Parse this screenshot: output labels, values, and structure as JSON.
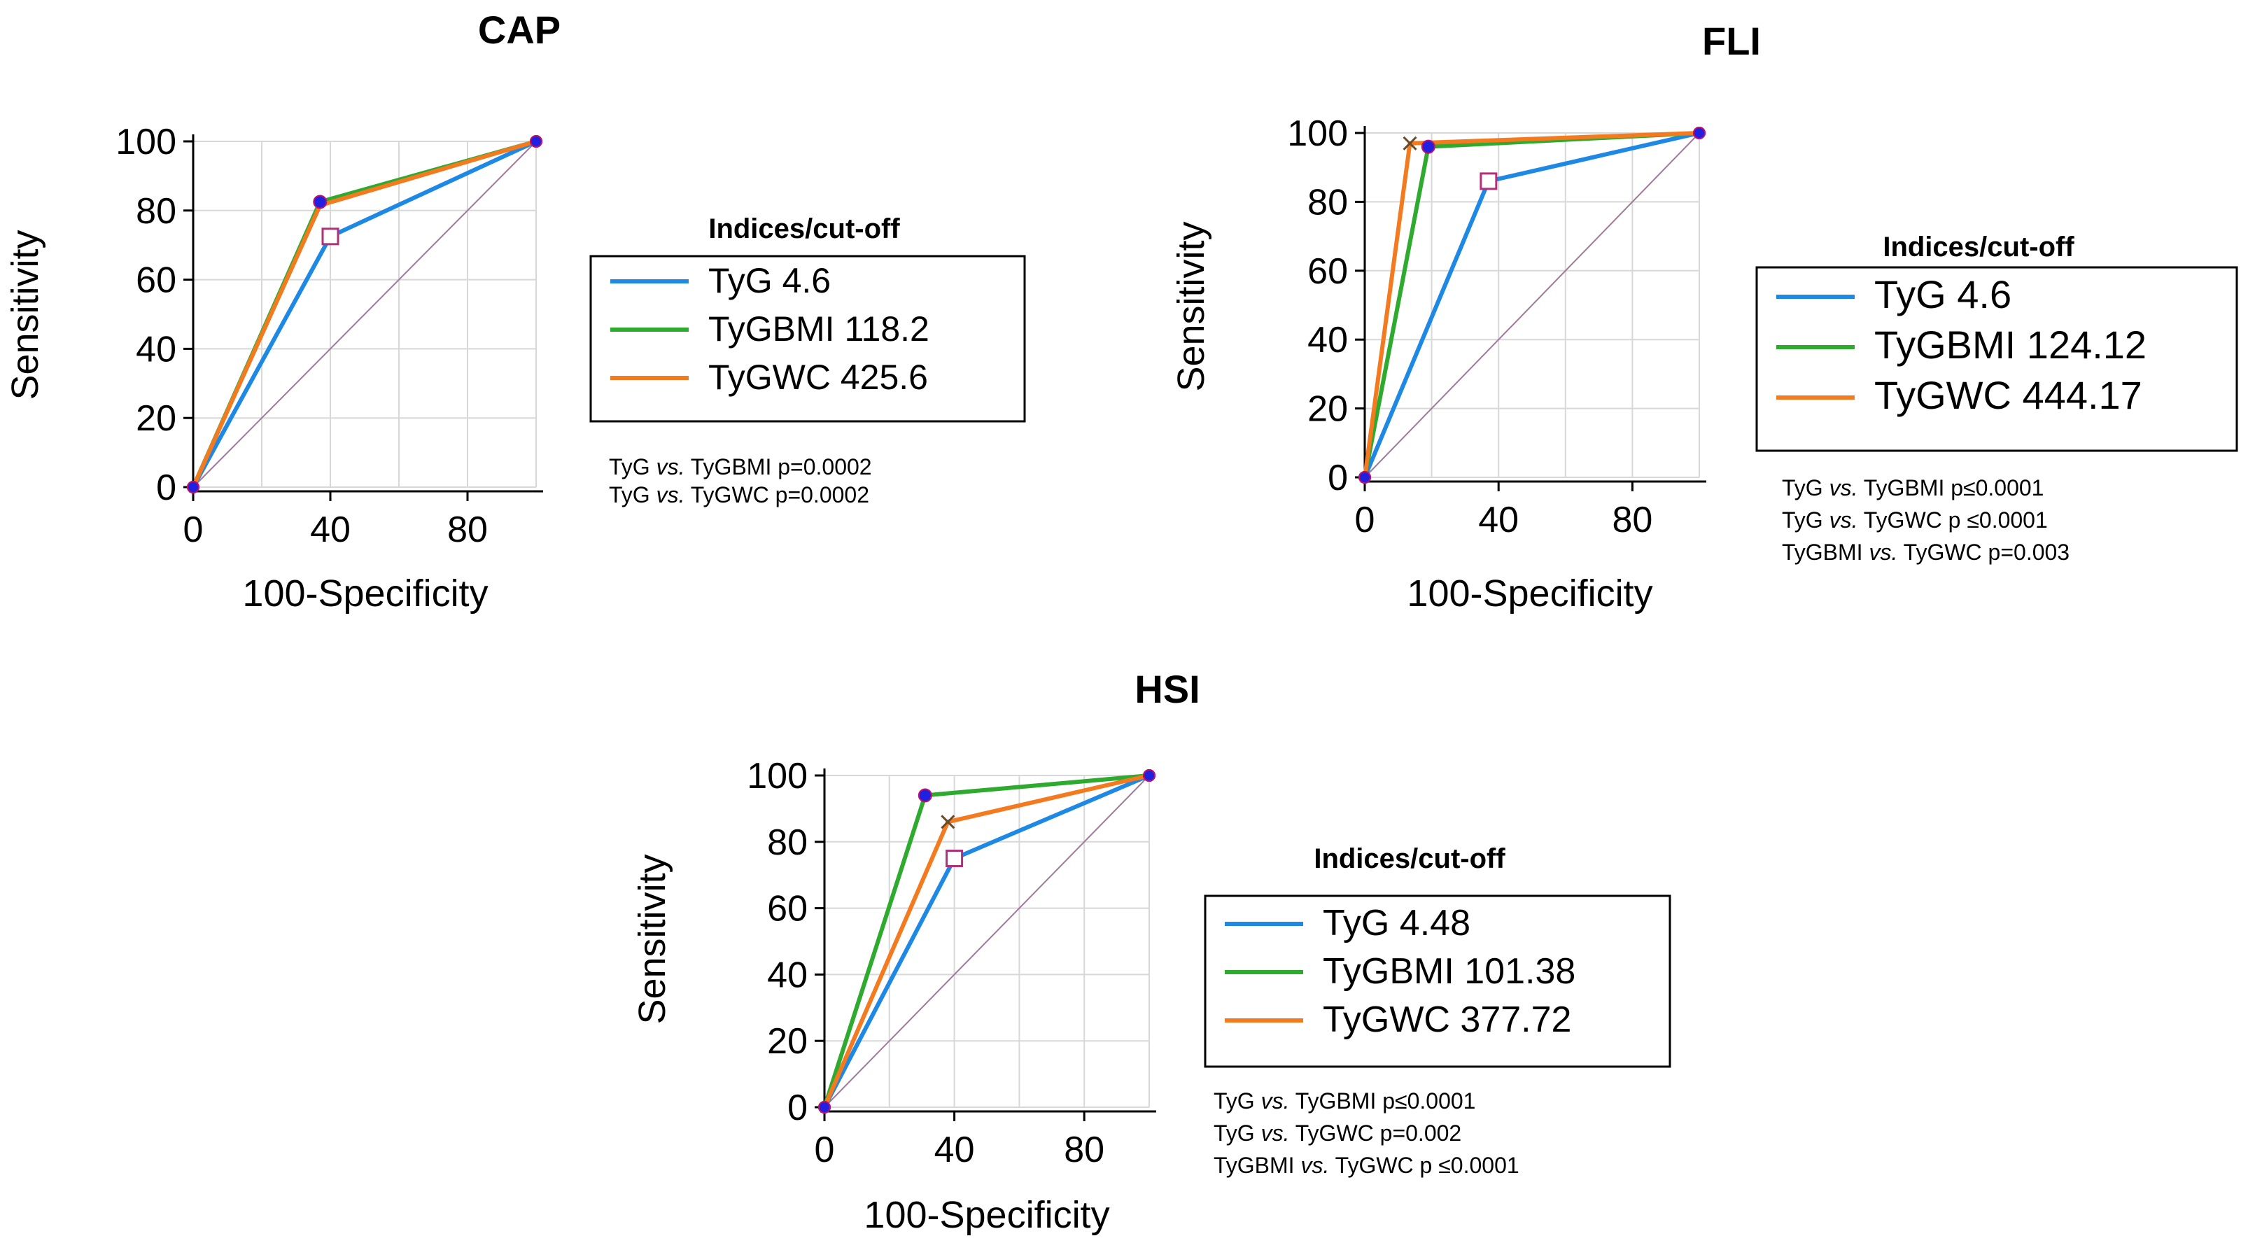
{
  "chart_data": [
    {
      "type": "line",
      "title": "CAP",
      "xlabel": "100-Specificity",
      "ylabel": "Sensitivity",
      "xlim": [
        0,
        100
      ],
      "ylim": [
        0,
        100
      ],
      "xticks": [
        "0",
        "40",
        "80"
      ],
      "yticks": [
        "0",
        "20",
        "40",
        "60",
        "80",
        "100"
      ],
      "legend_title": "Indices/cut-off",
      "series": [
        {
          "name": "TyG 4.6",
          "color": "#1e88e5",
          "points": [
            [
              0,
              0
            ],
            [
              40,
              72.5
            ],
            [
              100,
              100
            ]
          ],
          "marker": "square"
        },
        {
          "name": "TyGBMI 118.2",
          "color": "#2eaa2e",
          "points": [
            [
              0,
              0
            ],
            [
              37,
              82.5
            ],
            [
              100,
              100
            ]
          ],
          "marker": "dot"
        },
        {
          "name": "TyGWC 425.6",
          "color": "#f47a20",
          "points": [
            [
              0,
              0
            ],
            [
              37,
              81.5
            ],
            [
              100,
              100
            ]
          ],
          "marker": "none"
        }
      ],
      "comparisons": [
        {
          "a": "TyG",
          "vs": "vs.",
          "b": "TyGBMI p=0.0002"
        },
        {
          "a": "TyG",
          "vs": "vs.",
          "b": "TyGWC p=0.0002"
        }
      ]
    },
    {
      "type": "line",
      "title": "FLI",
      "xlabel": "100-Specificity",
      "ylabel": "Sensitivity",
      "xlim": [
        0,
        100
      ],
      "ylim": [
        0,
        100
      ],
      "xticks": [
        "0",
        "40",
        "80"
      ],
      "yticks": [
        "0",
        "20",
        "40",
        "60",
        "80",
        "100"
      ],
      "legend_title": "Indices/cut-off",
      "series": [
        {
          "name": "TyG 4.6",
          "color": "#1e88e5",
          "points": [
            [
              0,
              0
            ],
            [
              37,
              86
            ],
            [
              100,
              100
            ]
          ],
          "marker": "square"
        },
        {
          "name": "TyGBMI 124.12",
          "color": "#2eaa2e",
          "points": [
            [
              0,
              0
            ],
            [
              19,
              96
            ],
            [
              100,
              100
            ]
          ],
          "marker": "dot"
        },
        {
          "name": "TyGWC 444.17",
          "color": "#f47a20",
          "points": [
            [
              0,
              0
            ],
            [
              13.5,
              97
            ],
            [
              100,
              100
            ]
          ],
          "marker": "cross"
        }
      ],
      "comparisons": [
        {
          "a": "TyG",
          "vs": "vs.",
          "b": "TyGBMI p≤0.0001"
        },
        {
          "a": "TyG",
          "vs": "vs.",
          "b": "TyGWC p ≤0.0001"
        },
        {
          "a": "TyGBMI",
          "vs": "vs.",
          "b": "TyGWC p=0.003"
        }
      ]
    },
    {
      "type": "line",
      "title": "HSI",
      "xlabel": "100-Specificity",
      "ylabel": "Sensitivity",
      "xlim": [
        0,
        100
      ],
      "ylim": [
        0,
        100
      ],
      "xticks": [
        "0",
        "40",
        "80"
      ],
      "yticks": [
        "0",
        "20",
        "40",
        "60",
        "80",
        "100"
      ],
      "legend_title": "Indices/cut-off",
      "series": [
        {
          "name": "TyG 4.48",
          "color": "#1e88e5",
          "points": [
            [
              0,
              0
            ],
            [
              40,
              75
            ],
            [
              100,
              100
            ]
          ],
          "marker": "square"
        },
        {
          "name": "TyGBMI 101.38",
          "color": "#2eaa2e",
          "points": [
            [
              0,
              0
            ],
            [
              31,
              94
            ],
            [
              100,
              100
            ]
          ],
          "marker": "dot"
        },
        {
          "name": "TyGWC 377.72",
          "color": "#f47a20",
          "points": [
            [
              0,
              0
            ],
            [
              38,
              86
            ],
            [
              100,
              100
            ]
          ],
          "marker": "cross"
        }
      ],
      "comparisons": [
        {
          "a": "TyG",
          "vs": "vs.",
          "b": "TyGBMI p≤0.0001"
        },
        {
          "a": "TyG",
          "vs": "vs.",
          "b": "TyGWC p=0.002"
        },
        {
          "a": "TyGBMI",
          "vs": "vs.",
          "b": "TyGWC p ≤0.0001"
        }
      ]
    }
  ]
}
